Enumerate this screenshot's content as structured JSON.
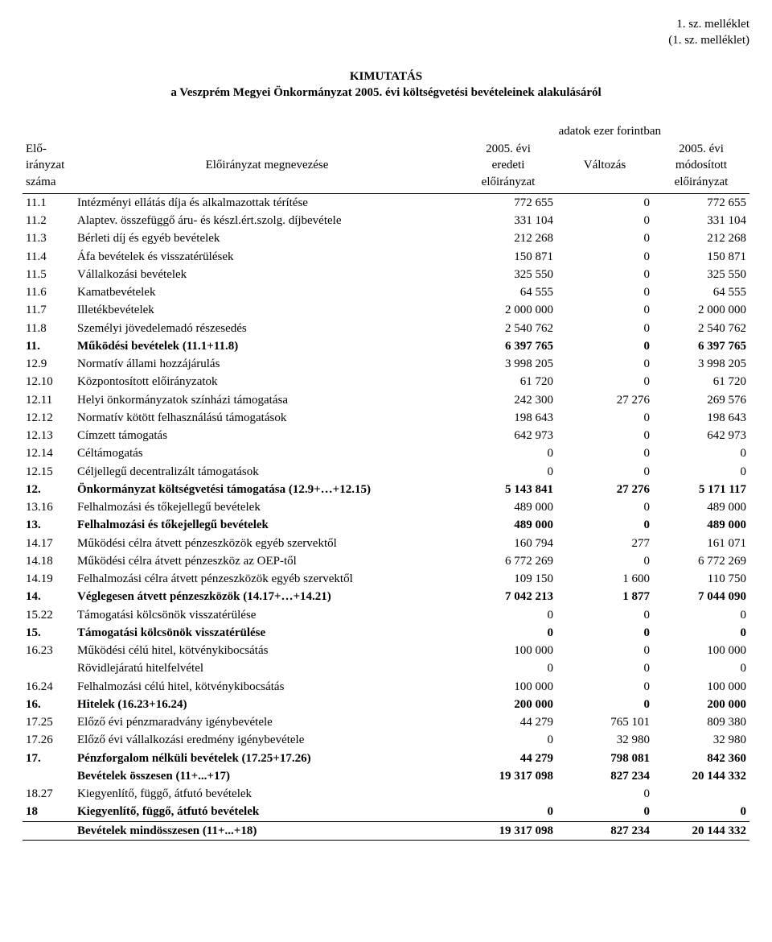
{
  "top_right": {
    "line1": "1. sz. melléklet",
    "line2": "(1. sz. melléklet)"
  },
  "title": {
    "line1": "KIMUTATÁS",
    "line2": "a Veszprém Megyei Önkormányzat 2005. évi költségvetési bevételeinek alakulásáról"
  },
  "units_label": "adatok ezer forintban",
  "headers": {
    "col1_l1": "Elő-",
    "col1_l2": "irányzat",
    "col1_l3": "száma",
    "col2": "Előirányzat megnevezése",
    "col3_l1": "2005. évi",
    "col3_l2": "eredeti",
    "col3_l3": "előirányzat",
    "col4": "Változás",
    "col5_l1": "2005. évi",
    "col5_l2": "módosított",
    "col5_l3": "előirányzat"
  },
  "rows": [
    {
      "n": "11.1",
      "label": "Intézményi ellátás díja és alkalmazottak térítése",
      "v1": "772 655",
      "v2": "0",
      "v3": "772 655",
      "bold": false
    },
    {
      "n": "11.2",
      "label": "Alaptev. összefüggő áru- és készl.ért.szolg. díjbevétele",
      "v1": "331 104",
      "v2": "0",
      "v3": "331 104",
      "bold": false
    },
    {
      "n": "11.3",
      "label": "Bérleti díj és egyéb bevételek",
      "v1": "212 268",
      "v2": "0",
      "v3": "212 268",
      "bold": false
    },
    {
      "n": "11.4",
      "label": "Áfa bevételek és visszatérülések",
      "v1": "150 871",
      "v2": "0",
      "v3": "150 871",
      "bold": false
    },
    {
      "n": "11.5",
      "label": "Vállalkozási bevételek",
      "v1": "325 550",
      "v2": "0",
      "v3": "325 550",
      "bold": false
    },
    {
      "n": "11.6",
      "label": "Kamatbevételek",
      "v1": "64 555",
      "v2": "0",
      "v3": "64 555",
      "bold": false
    },
    {
      "n": "11.7",
      "label": "Illetékbevételek",
      "v1": "2 000 000",
      "v2": "0",
      "v3": "2 000 000",
      "bold": false
    },
    {
      "n": "11.8",
      "label": "Személyi jövedelemadó részesedés",
      "v1": "2 540 762",
      "v2": "0",
      "v3": "2 540 762",
      "bold": false
    },
    {
      "n": "11.",
      "label": "Működési bevételek (11.1+11.8)",
      "v1": "6 397 765",
      "v2": "0",
      "v3": "6 397 765",
      "bold": true
    },
    {
      "n": "12.9",
      "label": "Normatív állami hozzájárulás",
      "v1": "3 998 205",
      "v2": "0",
      "v3": "3 998 205",
      "bold": false
    },
    {
      "n": "12.10",
      "label": "Központosított előirányzatok",
      "v1": "61 720",
      "v2": "0",
      "v3": "61 720",
      "bold": false
    },
    {
      "n": "12.11",
      "label": "Helyi önkormányzatok színházi támogatása",
      "v1": "242 300",
      "v2": "27 276",
      "v3": "269 576",
      "bold": false
    },
    {
      "n": "12.12",
      "label": "Normatív kötött felhasználású támogatások",
      "v1": "198 643",
      "v2": "0",
      "v3": "198 643",
      "bold": false
    },
    {
      "n": "12.13",
      "label": "Címzett támogatás",
      "v1": "642 973",
      "v2": "0",
      "v3": "642 973",
      "bold": false
    },
    {
      "n": "12.14",
      "label": "Céltámogatás",
      "v1": "0",
      "v2": "0",
      "v3": "0",
      "bold": false
    },
    {
      "n": "12.15",
      "label": "Céljellegű decentralizált támogatások",
      "v1": "0",
      "v2": "0",
      "v3": "0",
      "bold": false
    },
    {
      "n": "12.",
      "label": "Önkormányzat költségvetési támogatása (12.9+…+12.15)",
      "v1": "5 143 841",
      "v2": "27 276",
      "v3": "5 171 117",
      "bold": true
    },
    {
      "n": "13.16",
      "label": "Felhalmozási és tőkejellegű bevételek",
      "v1": "489 000",
      "v2": "0",
      "v3": "489 000",
      "bold": false
    },
    {
      "n": "13.",
      "label": "Felhalmozási és tőkejellegű bevételek",
      "v1": "489 000",
      "v2": "0",
      "v3": "489 000",
      "bold": true
    },
    {
      "n": "14.17",
      "label": "Működési célra átvett pénzeszközök egyéb szervektől",
      "v1": "160 794",
      "v2": "277",
      "v3": "161 071",
      "bold": false
    },
    {
      "n": "14.18",
      "label": "Működési célra átvett pénzeszköz az OEP-től",
      "v1": "6 772 269",
      "v2": "0",
      "v3": "6 772 269",
      "bold": false
    },
    {
      "n": "14.19",
      "label": "Felhalmozási célra átvett pénzeszközök egyéb szervektől",
      "v1": "109 150",
      "v2": "1 600",
      "v3": "110 750",
      "bold": false
    },
    {
      "n": "14.",
      "label": "Véglegesen átvett pénzeszközök (14.17+…+14.21)",
      "v1": "7 042 213",
      "v2": "1 877",
      "v3": "7 044 090",
      "bold": true
    },
    {
      "n": "15.22",
      "label": "Támogatási kölcsönök visszatérülése",
      "v1": "0",
      "v2": "0",
      "v3": "0",
      "bold": false
    },
    {
      "n": "15.",
      "label": "Támogatási kölcsönök visszatérülése",
      "v1": "0",
      "v2": "0",
      "v3": "0",
      "bold": true
    },
    {
      "n": "16.23",
      "label": "Működési célú hitel, kötvénykibocsátás",
      "v1": "100 000",
      "v2": "0",
      "v3": "100 000",
      "bold": false
    },
    {
      "n": "",
      "label": "Rövidlejáratú hitelfelvétel",
      "v1": "0",
      "v2": "0",
      "v3": "0",
      "bold": false
    },
    {
      "n": "16.24",
      "label": "Felhalmozási célú hitel, kötvénykibocsátás",
      "v1": "100 000",
      "v2": "0",
      "v3": "100 000",
      "bold": false
    },
    {
      "n": "16.",
      "label": "Hitelek (16.23+16.24)",
      "v1": "200 000",
      "v2": "0",
      "v3": "200 000",
      "bold": true
    },
    {
      "n": "17.25",
      "label": "Előző évi pénzmaradvány igénybevétele",
      "v1": "44 279",
      "v2": "765 101",
      "v3": "809 380",
      "bold": false
    },
    {
      "n": "17.26",
      "label": "Előző évi vállalkozási eredmény igénybevétele",
      "v1": "0",
      "v2": "32 980",
      "v3": "32 980",
      "bold": false
    },
    {
      "n": "17.",
      "label": "Pénzforgalom nélküli bevételek (17.25+17.26)",
      "v1": "44 279",
      "v2": "798 081",
      "v3": "842 360",
      "bold": true
    },
    {
      "n": "",
      "label": "Bevételek összesen (11+...+17)",
      "v1": "19 317 098",
      "v2": "827 234",
      "v3": "20 144 332",
      "bold": true
    },
    {
      "n": "18.27",
      "label": "Kiegyenlítő, függő, átfutó bevételek",
      "v1": "",
      "v2": "0",
      "v3": "",
      "bold": false
    },
    {
      "n": "18",
      "label": "Kiegyenlítő, függő, átfutó bevételek",
      "v1": "0",
      "v2": "0",
      "v3": "0",
      "bold": true,
      "underline": true
    },
    {
      "n": "",
      "label": "Bevételek mindösszesen (11+...+18)",
      "v1": "19 317 098",
      "v2": "827 234",
      "v3": "20 144 332",
      "bold": true,
      "underline": true
    }
  ]
}
